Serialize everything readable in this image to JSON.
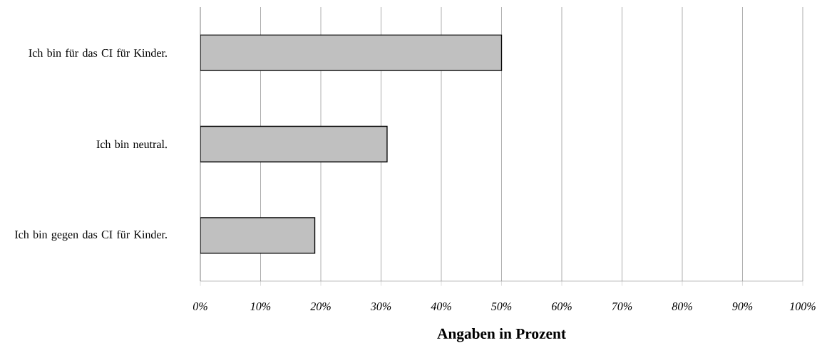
{
  "chart_data": {
    "type": "bar",
    "orientation": "horizontal",
    "xlabel": "Angaben in Prozent",
    "categories": [
      "Ich bin für das CI für Kinder.",
      "Ich bin neutral.",
      "Ich bin gegen das CI für Kinder."
    ],
    "values": [
      50,
      31,
      19
    ],
    "color": "#c0c0c0",
    "xlim": [
      0,
      100
    ],
    "xticks": [
      {
        "value": 0,
        "label": "0%"
      },
      {
        "value": 10,
        "label": "10%"
      },
      {
        "value": 20,
        "label": "20%"
      },
      {
        "value": 30,
        "label": "30%"
      },
      {
        "value": 40,
        "label": "40%"
      },
      {
        "value": 50,
        "label": "50%"
      },
      {
        "value": 60,
        "label": "60%"
      },
      {
        "value": 70,
        "label": "70%"
      },
      {
        "value": 80,
        "label": "80%"
      },
      {
        "value": 90,
        "label": "90%"
      },
      {
        "value": 100,
        "label": "100%"
      }
    ],
    "grid": "x"
  }
}
